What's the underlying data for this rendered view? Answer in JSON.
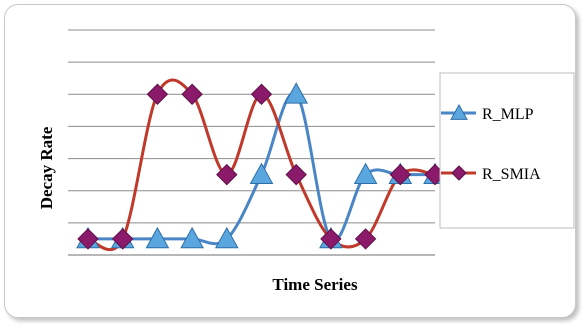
{
  "chart_data": {
    "type": "line",
    "title": "",
    "xlabel": "Time Series",
    "ylabel": "Decay Rate",
    "x": [
      1,
      2,
      3,
      4,
      5,
      6,
      7,
      8,
      9,
      10,
      11
    ],
    "ylim": [
      0,
      7
    ],
    "grid": true,
    "legend_position": "right",
    "series": [
      {
        "name": "R_MLP",
        "color": "#4a86c5",
        "marker": "triangle",
        "values": [
          0.5,
          0.5,
          0.5,
          0.5,
          0.5,
          2.5,
          5.0,
          0.5,
          2.5,
          2.5,
          2.5
        ]
      },
      {
        "name": "R_SMIA",
        "color": "#c0392b",
        "marker_color": "#8b1a6b",
        "marker": "diamond",
        "values": [
          0.5,
          0.5,
          5.0,
          5.0,
          2.5,
          5.0,
          2.5,
          0.5,
          0.5,
          2.5,
          2.5
        ]
      }
    ]
  }
}
